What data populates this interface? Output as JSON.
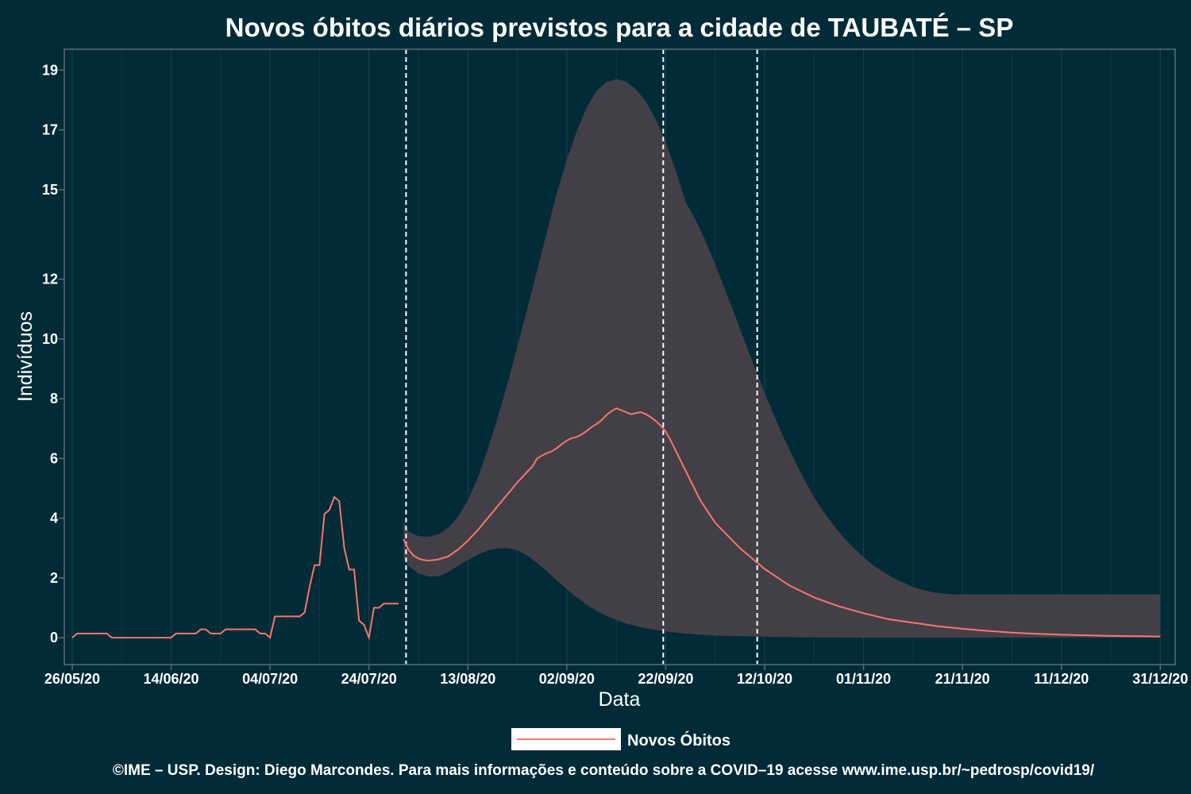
{
  "chart_data": {
    "type": "line",
    "title": "Novos óbitos diários previstos para a cidade de TAUBATÉ – SP",
    "xlabel": "Data",
    "ylabel": "Indivíduos",
    "ylim": [
      -0.9,
      19.7
    ],
    "xlim": [
      -1.6,
      223
    ],
    "y_ticks": [
      0,
      2,
      4,
      6,
      8,
      10,
      12,
      15,
      17,
      19
    ],
    "x_ticks": [
      {
        "day": 0,
        "label": "26/05/20"
      },
      {
        "day": 20,
        "label": "14/06/20"
      },
      {
        "day": 40,
        "label": "04/07/20"
      },
      {
        "day": 60,
        "label": "24/07/20"
      },
      {
        "day": 80,
        "label": "13/08/20"
      },
      {
        "day": 100,
        "label": "02/09/20"
      },
      {
        "day": 120,
        "label": "22/09/20"
      },
      {
        "day": 140,
        "label": "12/10/20"
      },
      {
        "day": 160,
        "label": "01/11/20"
      },
      {
        "day": 180,
        "label": "21/11/20"
      },
      {
        "day": 200,
        "label": "11/12/20"
      },
      {
        "day": 220,
        "label": "31/12/20"
      }
    ],
    "vlines": [
      67.5,
      119.5,
      138.5
    ],
    "grid": true,
    "legend_position": "bottom",
    "series": [
      {
        "name": "Novos Óbitos",
        "color": "#f8766d",
        "observed": [
          [
            0,
            0
          ],
          [
            1,
            0.14
          ],
          [
            2,
            0.14
          ],
          [
            3,
            0.14
          ],
          [
            4,
            0.14
          ],
          [
            5,
            0.14
          ],
          [
            6,
            0.14
          ],
          [
            7,
            0.14
          ],
          [
            8,
            0
          ],
          [
            9,
            0
          ],
          [
            10,
            0
          ],
          [
            11,
            0
          ],
          [
            12,
            0
          ],
          [
            13,
            0
          ],
          [
            14,
            0
          ],
          [
            15,
            0
          ],
          [
            16,
            0
          ],
          [
            17,
            0
          ],
          [
            18,
            0
          ],
          [
            19,
            0
          ],
          [
            20,
            0
          ],
          [
            21,
            0.14
          ],
          [
            22,
            0.14
          ],
          [
            23,
            0.14
          ],
          [
            24,
            0.14
          ],
          [
            25,
            0.14
          ],
          [
            26,
            0.28
          ],
          [
            27,
            0.28
          ],
          [
            28,
            0.14
          ],
          [
            29,
            0.14
          ],
          [
            30,
            0.14
          ],
          [
            31,
            0.28
          ],
          [
            32,
            0.28
          ],
          [
            33,
            0.28
          ],
          [
            34,
            0.28
          ],
          [
            35,
            0.28
          ],
          [
            36,
            0.28
          ],
          [
            37,
            0.28
          ],
          [
            38,
            0.14
          ],
          [
            39,
            0.14
          ],
          [
            40,
            0
          ],
          [
            41,
            0.71
          ],
          [
            42,
            0.71
          ],
          [
            43,
            0.71
          ],
          [
            44,
            0.71
          ],
          [
            45,
            0.71
          ],
          [
            46,
            0.71
          ],
          [
            47,
            0.85
          ],
          [
            48,
            1.71
          ],
          [
            49,
            2.43
          ],
          [
            50,
            2.43
          ],
          [
            51,
            4.14
          ],
          [
            52,
            4.28
          ],
          [
            53,
            4.71
          ],
          [
            54,
            4.57
          ],
          [
            55,
            3.0
          ],
          [
            56,
            2.28
          ],
          [
            57,
            2.28
          ],
          [
            58,
            0.57
          ],
          [
            59,
            0.43
          ],
          [
            60,
            0
          ],
          [
            61,
            1.0
          ],
          [
            62,
            1.0
          ],
          [
            63,
            1.14
          ],
          [
            64,
            1.14
          ],
          [
            65,
            1.14
          ],
          [
            66,
            1.14
          ]
        ],
        "forecast": [
          [
            67,
            3.3
          ],
          [
            68,
            2.95
          ],
          [
            69,
            2.75
          ],
          [
            70,
            2.65
          ],
          [
            71,
            2.6
          ],
          [
            72,
            2.58
          ],
          [
            74,
            2.62
          ],
          [
            76,
            2.72
          ],
          [
            78,
            2.95
          ],
          [
            80,
            3.25
          ],
          [
            82,
            3.6
          ],
          [
            84,
            4.0
          ],
          [
            86,
            4.4
          ],
          [
            88,
            4.8
          ],
          [
            90,
            5.2
          ],
          [
            92,
            5.55
          ],
          [
            93,
            5.72
          ],
          [
            94,
            6.0
          ],
          [
            95,
            6.1
          ],
          [
            96,
            6.18
          ],
          [
            97,
            6.24
          ],
          [
            98,
            6.35
          ],
          [
            99,
            6.48
          ],
          [
            100,
            6.6
          ],
          [
            101,
            6.68
          ],
          [
            102,
            6.72
          ],
          [
            103,
            6.8
          ],
          [
            104,
            6.92
          ],
          [
            105,
            7.05
          ],
          [
            106,
            7.15
          ],
          [
            107,
            7.28
          ],
          [
            108,
            7.45
          ],
          [
            109,
            7.58
          ],
          [
            110,
            7.68
          ],
          [
            111,
            7.62
          ],
          [
            112,
            7.55
          ],
          [
            113,
            7.48
          ],
          [
            114,
            7.52
          ],
          [
            115,
            7.55
          ],
          [
            116,
            7.48
          ],
          [
            117,
            7.38
          ],
          [
            118,
            7.25
          ],
          [
            119,
            7.1
          ],
          [
            120,
            6.9
          ],
          [
            121,
            6.6
          ],
          [
            124,
            5.6
          ],
          [
            127,
            4.6
          ],
          [
            130,
            3.85
          ],
          [
            135,
            3.0
          ],
          [
            140,
            2.3
          ],
          [
            145,
            1.75
          ],
          [
            150,
            1.35
          ],
          [
            155,
            1.05
          ],
          [
            160,
            0.82
          ],
          [
            165,
            0.62
          ],
          [
            170,
            0.5
          ],
          [
            175,
            0.38
          ],
          [
            180,
            0.3
          ],
          [
            185,
            0.23
          ],
          [
            190,
            0.17
          ],
          [
            195,
            0.13
          ],
          [
            200,
            0.1
          ],
          [
            205,
            0.08
          ],
          [
            210,
            0.06
          ],
          [
            215,
            0.05
          ],
          [
            220,
            0.04
          ]
        ]
      }
    ],
    "ribbon": {
      "color": "#433f47",
      "upper": [
        [
          67,
          3.9
        ],
        [
          68,
          3.55
        ],
        [
          70,
          3.4
        ],
        [
          72,
          3.38
        ],
        [
          74,
          3.45
        ],
        [
          76,
          3.68
        ],
        [
          78,
          4.05
        ],
        [
          80,
          4.6
        ],
        [
          82,
          5.35
        ],
        [
          84,
          6.3
        ],
        [
          86,
          7.35
        ],
        [
          88,
          8.5
        ],
        [
          90,
          9.75
        ],
        [
          92,
          11.0
        ],
        [
          94,
          12.3
        ],
        [
          96,
          13.6
        ],
        [
          98,
          14.9
        ],
        [
          100,
          16.0
        ],
        [
          102,
          16.95
        ],
        [
          104,
          17.75
        ],
        [
          106,
          18.3
        ],
        [
          108,
          18.6
        ],
        [
          110,
          18.7
        ],
        [
          112,
          18.62
        ],
        [
          114,
          18.35
        ],
        [
          116,
          17.95
        ],
        [
          118,
          17.35
        ],
        [
          120,
          16.6
        ],
        [
          122,
          15.65
        ],
        [
          124,
          14.6
        ],
        [
          126,
          14.0
        ],
        [
          128,
          13.3
        ],
        [
          130,
          12.5
        ],
        [
          132,
          11.65
        ],
        [
          134,
          10.8
        ],
        [
          136,
          9.9
        ],
        [
          138,
          9.05
        ],
        [
          140,
          8.2
        ],
        [
          142,
          7.4
        ],
        [
          144,
          6.65
        ],
        [
          146,
          5.95
        ],
        [
          148,
          5.3
        ],
        [
          150,
          4.7
        ],
        [
          152,
          4.2
        ],
        [
          154,
          3.75
        ],
        [
          156,
          3.35
        ],
        [
          158,
          3.0
        ],
        [
          160,
          2.7
        ],
        [
          162,
          2.42
        ],
        [
          164,
          2.2
        ],
        [
          166,
          2.0
        ],
        [
          168,
          1.85
        ],
        [
          170,
          1.7
        ],
        [
          172,
          1.6
        ],
        [
          174,
          1.52
        ],
        [
          176,
          1.48
        ],
        [
          178,
          1.45
        ],
        [
          180,
          1.45
        ],
        [
          182,
          1.45
        ],
        [
          184,
          1.45
        ],
        [
          186,
          1.45
        ],
        [
          188,
          1.45
        ],
        [
          190,
          1.45
        ],
        [
          192,
          1.45
        ],
        [
          194,
          1.45
        ],
        [
          196,
          1.45
        ],
        [
          198,
          1.45
        ],
        [
          200,
          1.45
        ],
        [
          202,
          1.45
        ],
        [
          204,
          1.45
        ],
        [
          206,
          1.45
        ],
        [
          208,
          1.45
        ],
        [
          210,
          1.45
        ],
        [
          212,
          1.45
        ],
        [
          214,
          1.45
        ],
        [
          216,
          1.45
        ],
        [
          218,
          1.45
        ],
        [
          220,
          1.45
        ]
      ],
      "lower": [
        [
          67,
          2.7
        ],
        [
          68,
          2.4
        ],
        [
          70,
          2.15
        ],
        [
          72,
          2.05
        ],
        [
          74,
          2.05
        ],
        [
          76,
          2.2
        ],
        [
          78,
          2.4
        ],
        [
          80,
          2.6
        ],
        [
          82,
          2.78
        ],
        [
          84,
          2.92
        ],
        [
          86,
          2.99
        ],
        [
          88,
          3.0
        ],
        [
          90,
          2.93
        ],
        [
          92,
          2.75
        ],
        [
          94,
          2.5
        ],
        [
          96,
          2.22
        ],
        [
          98,
          1.92
        ],
        [
          100,
          1.62
        ],
        [
          102,
          1.35
        ],
        [
          104,
          1.1
        ],
        [
          106,
          0.9
        ],
        [
          108,
          0.73
        ],
        [
          110,
          0.6
        ],
        [
          112,
          0.48
        ],
        [
          114,
          0.39
        ],
        [
          116,
          0.32
        ],
        [
          118,
          0.26
        ],
        [
          120,
          0.21
        ],
        [
          122,
          0.17
        ],
        [
          124,
          0.14
        ],
        [
          126,
          0.11
        ],
        [
          128,
          0.09
        ],
        [
          130,
          0.07
        ],
        [
          135,
          0.05
        ],
        [
          140,
          0.03
        ],
        [
          145,
          0.02
        ],
        [
          150,
          0.01
        ],
        [
          160,
          0.005
        ],
        [
          180,
          0
        ],
        [
          200,
          0
        ],
        [
          220,
          0
        ]
      ]
    },
    "caption": "©IME – USP. Design: Diego Marcondes. Para mais informações e conteúdo sobre a COVID–19 acesse www.ime.usp.br/~pedrosp/covid19/"
  }
}
